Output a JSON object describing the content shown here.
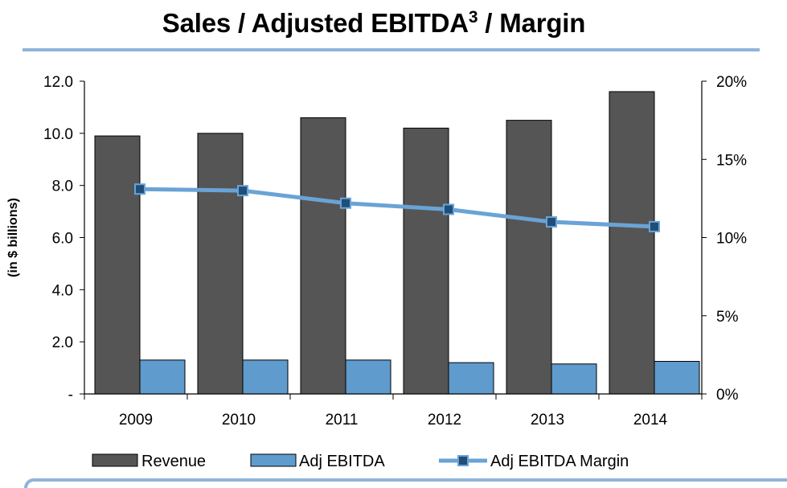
{
  "header": {
    "title": "Sales / Adjusted EBITDA",
    "title_superscript": "3",
    "title_suffix": " / Margin"
  },
  "colors": {
    "revenue": "#555555",
    "ebitda": "#5f9bcd",
    "margin_line": "#6aa3d6",
    "margin_marker": "#1f4e79",
    "rule": "#8fb4d9"
  },
  "chart_data": {
    "type": "bar",
    "categories": [
      "2009",
      "2010",
      "2011",
      "2012",
      "2013",
      "2014"
    ],
    "series": [
      {
        "name": "Revenue",
        "type": "bar",
        "axis": "left",
        "values": [
          9.9,
          10.0,
          10.6,
          10.2,
          10.5,
          11.6
        ]
      },
      {
        "name": "Adj EBITDA",
        "type": "bar",
        "axis": "left",
        "values": [
          1.3,
          1.3,
          1.3,
          1.2,
          1.15,
          1.25
        ]
      },
      {
        "name": "Adj EBITDA Margin",
        "type": "line",
        "axis": "right",
        "values": [
          13.1,
          13.0,
          12.2,
          11.8,
          11.0,
          10.7
        ]
      }
    ],
    "ylabel": "(in $ billions)",
    "ylim": [
      0,
      12
    ],
    "y_ticks": [
      0,
      2,
      4,
      6,
      8,
      10,
      12
    ],
    "y_tick_labels": [
      "-",
      "2.0",
      "4.0",
      "6.0",
      "8.0",
      "10.0",
      "12.0"
    ],
    "y2lim": [
      0,
      20
    ],
    "y2_ticks": [
      0,
      5,
      10,
      15,
      20
    ],
    "y2_tick_labels": [
      "0%",
      "5%",
      "10%",
      "15%",
      "20%"
    ],
    "legend_position": "bottom",
    "grid": false
  }
}
